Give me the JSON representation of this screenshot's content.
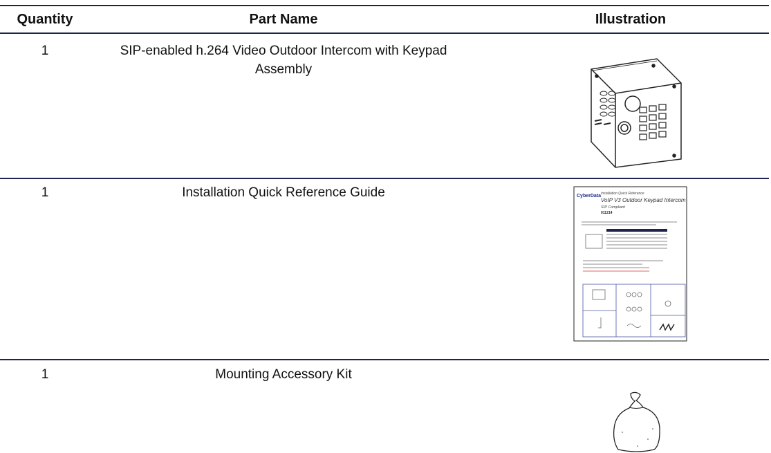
{
  "table": {
    "header": [
      "Quantity",
      "Part Name",
      "Illustration"
    ],
    "rows": [
      [
        1,
        "SIP-enabled h.264 Video Outdoor Intercom with Keypad Assembly"
      ],
      [
        1,
        "Installation Quick Reference Guide"
      ],
      [
        1,
        "Mounting Accessory Kit"
      ]
    ],
    "guide_thumbnail": {
      "logo": "CyberData",
      "kicker": "Installation Quick Reference",
      "title": "VoIP V3 Outdoor Keypad Intercom",
      "subtitle": "SIP Compliant",
      "part_number": "011214"
    }
  }
}
